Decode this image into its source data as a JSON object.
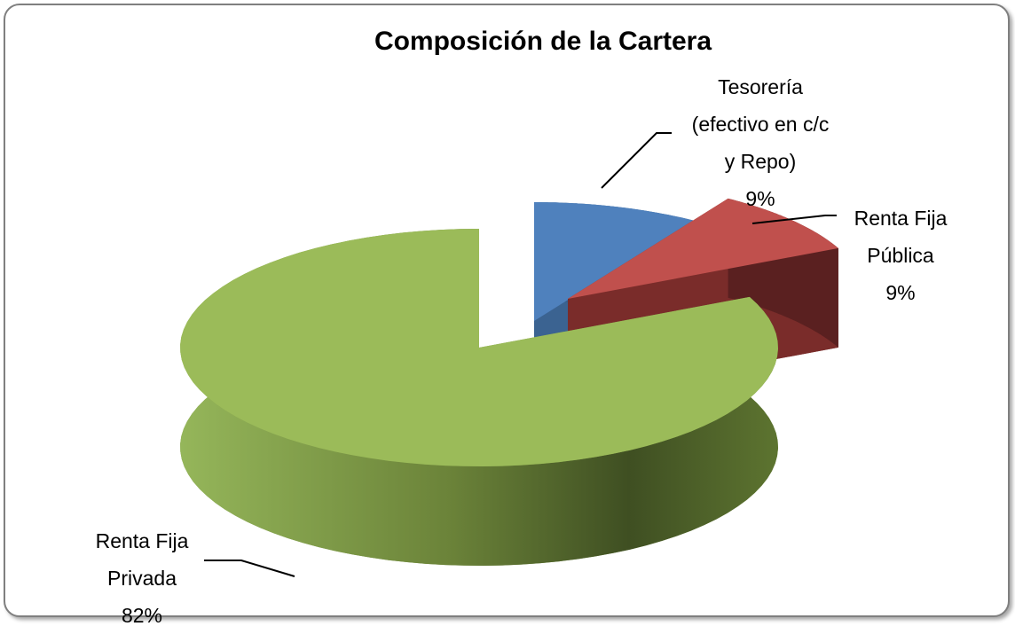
{
  "chart_data": {
    "type": "pie3d",
    "title": "Composición de la Cartera",
    "categories": [
      "Tesorería\n(efectivo en c/c\ny Repo)",
      "Renta Fija\nPública",
      "Renta Fija\nPrivada"
    ],
    "values": [
      9,
      9,
      82
    ],
    "value_labels": [
      "9%",
      "9%",
      "82%"
    ],
    "colors": [
      "#4f81bd",
      "#c0504d",
      "#9bbb59"
    ]
  }
}
